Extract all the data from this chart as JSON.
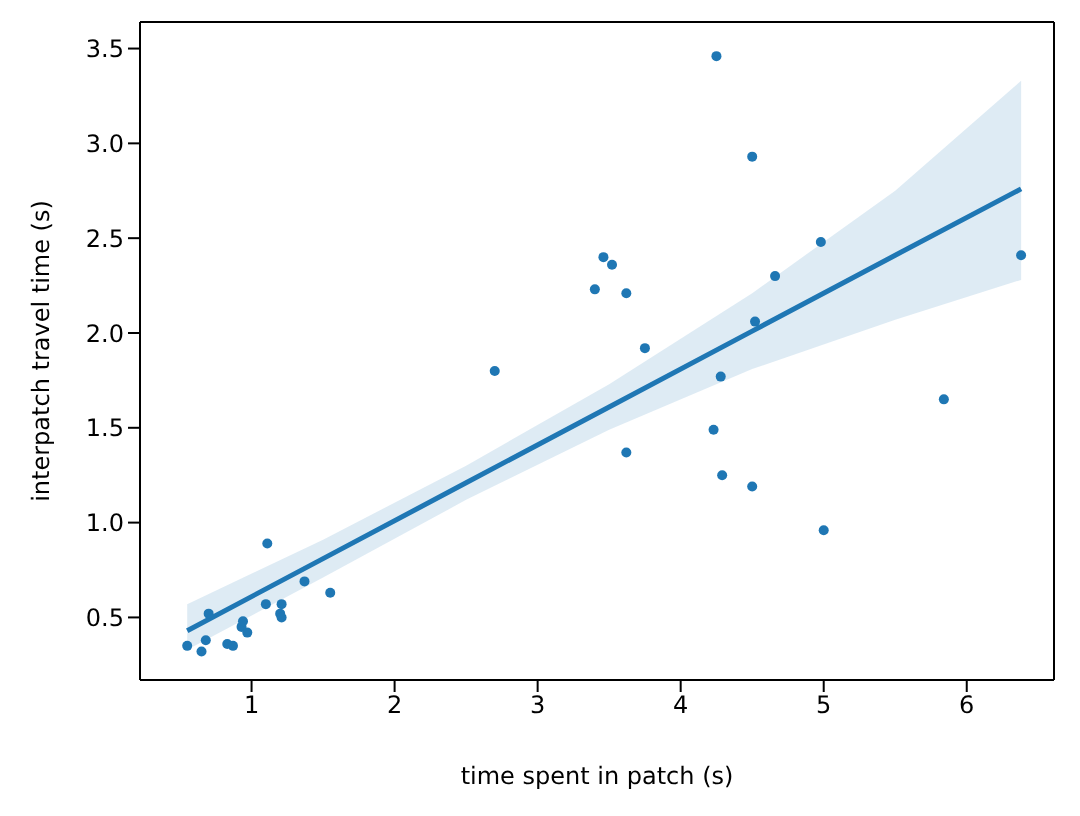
{
  "chart_data": {
    "type": "scatter",
    "xlabel": "time spent in patch (s)",
    "ylabel": "interpatch travel time (s)",
    "xlim": [
      0.22,
      6.61
    ],
    "ylim": [
      0.17,
      3.64
    ],
    "xticks": [
      1,
      2,
      3,
      4,
      5,
      6
    ],
    "yticks": [
      0.5,
      {
        "value": 1,
        "label": "1.0"
      },
      1.5,
      {
        "value": 2,
        "label": "2.0"
      },
      2.5,
      {
        "value": 3,
        "label": "3.0"
      },
      3.5
    ],
    "grid": false,
    "series": [
      {
        "marker": "circle",
        "color": "#1f77b4",
        "x": [
          0.55,
          0.65,
          0.68,
          0.7,
          0.83,
          0.87,
          0.93,
          0.94,
          0.97,
          1.11,
          1.1,
          1.2,
          1.21,
          1.21,
          1.37,
          1.55,
          2.7,
          3.4,
          3.46,
          3.52,
          3.62,
          3.62,
          3.75,
          4.25,
          4.23,
          4.28,
          4.29,
          4.5,
          4.5,
          4.52,
          4.66,
          4.98,
          5.0,
          5.84,
          6.38
        ],
        "values": [
          0.35,
          0.32,
          0.38,
          0.52,
          0.36,
          0.35,
          0.45,
          0.48,
          0.42,
          0.89,
          0.57,
          0.52,
          0.5,
          0.57,
          0.69,
          0.63,
          1.8,
          2.23,
          2.4,
          2.36,
          2.21,
          1.37,
          1.92,
          3.46,
          1.49,
          1.77,
          1.25,
          2.93,
          1.19,
          2.06,
          2.3,
          2.48,
          0.96,
          1.65,
          2.41
        ]
      },
      {
        "type": "line",
        "color": "#1f77b4",
        "x": [
          0.55,
          1.5,
          2.5,
          3.5,
          4.5,
          5.5,
          6.38
        ],
        "values": [
          0.43,
          0.81,
          1.21,
          1.61,
          2.01,
          2.41,
          2.76
        ],
        "lower": [
          0.33,
          0.71,
          1.12,
          1.49,
          1.81,
          2.07,
          2.28
        ],
        "upper": [
          0.57,
          0.91,
          1.3,
          1.73,
          2.21,
          2.75,
          3.33
        ]
      }
    ]
  }
}
